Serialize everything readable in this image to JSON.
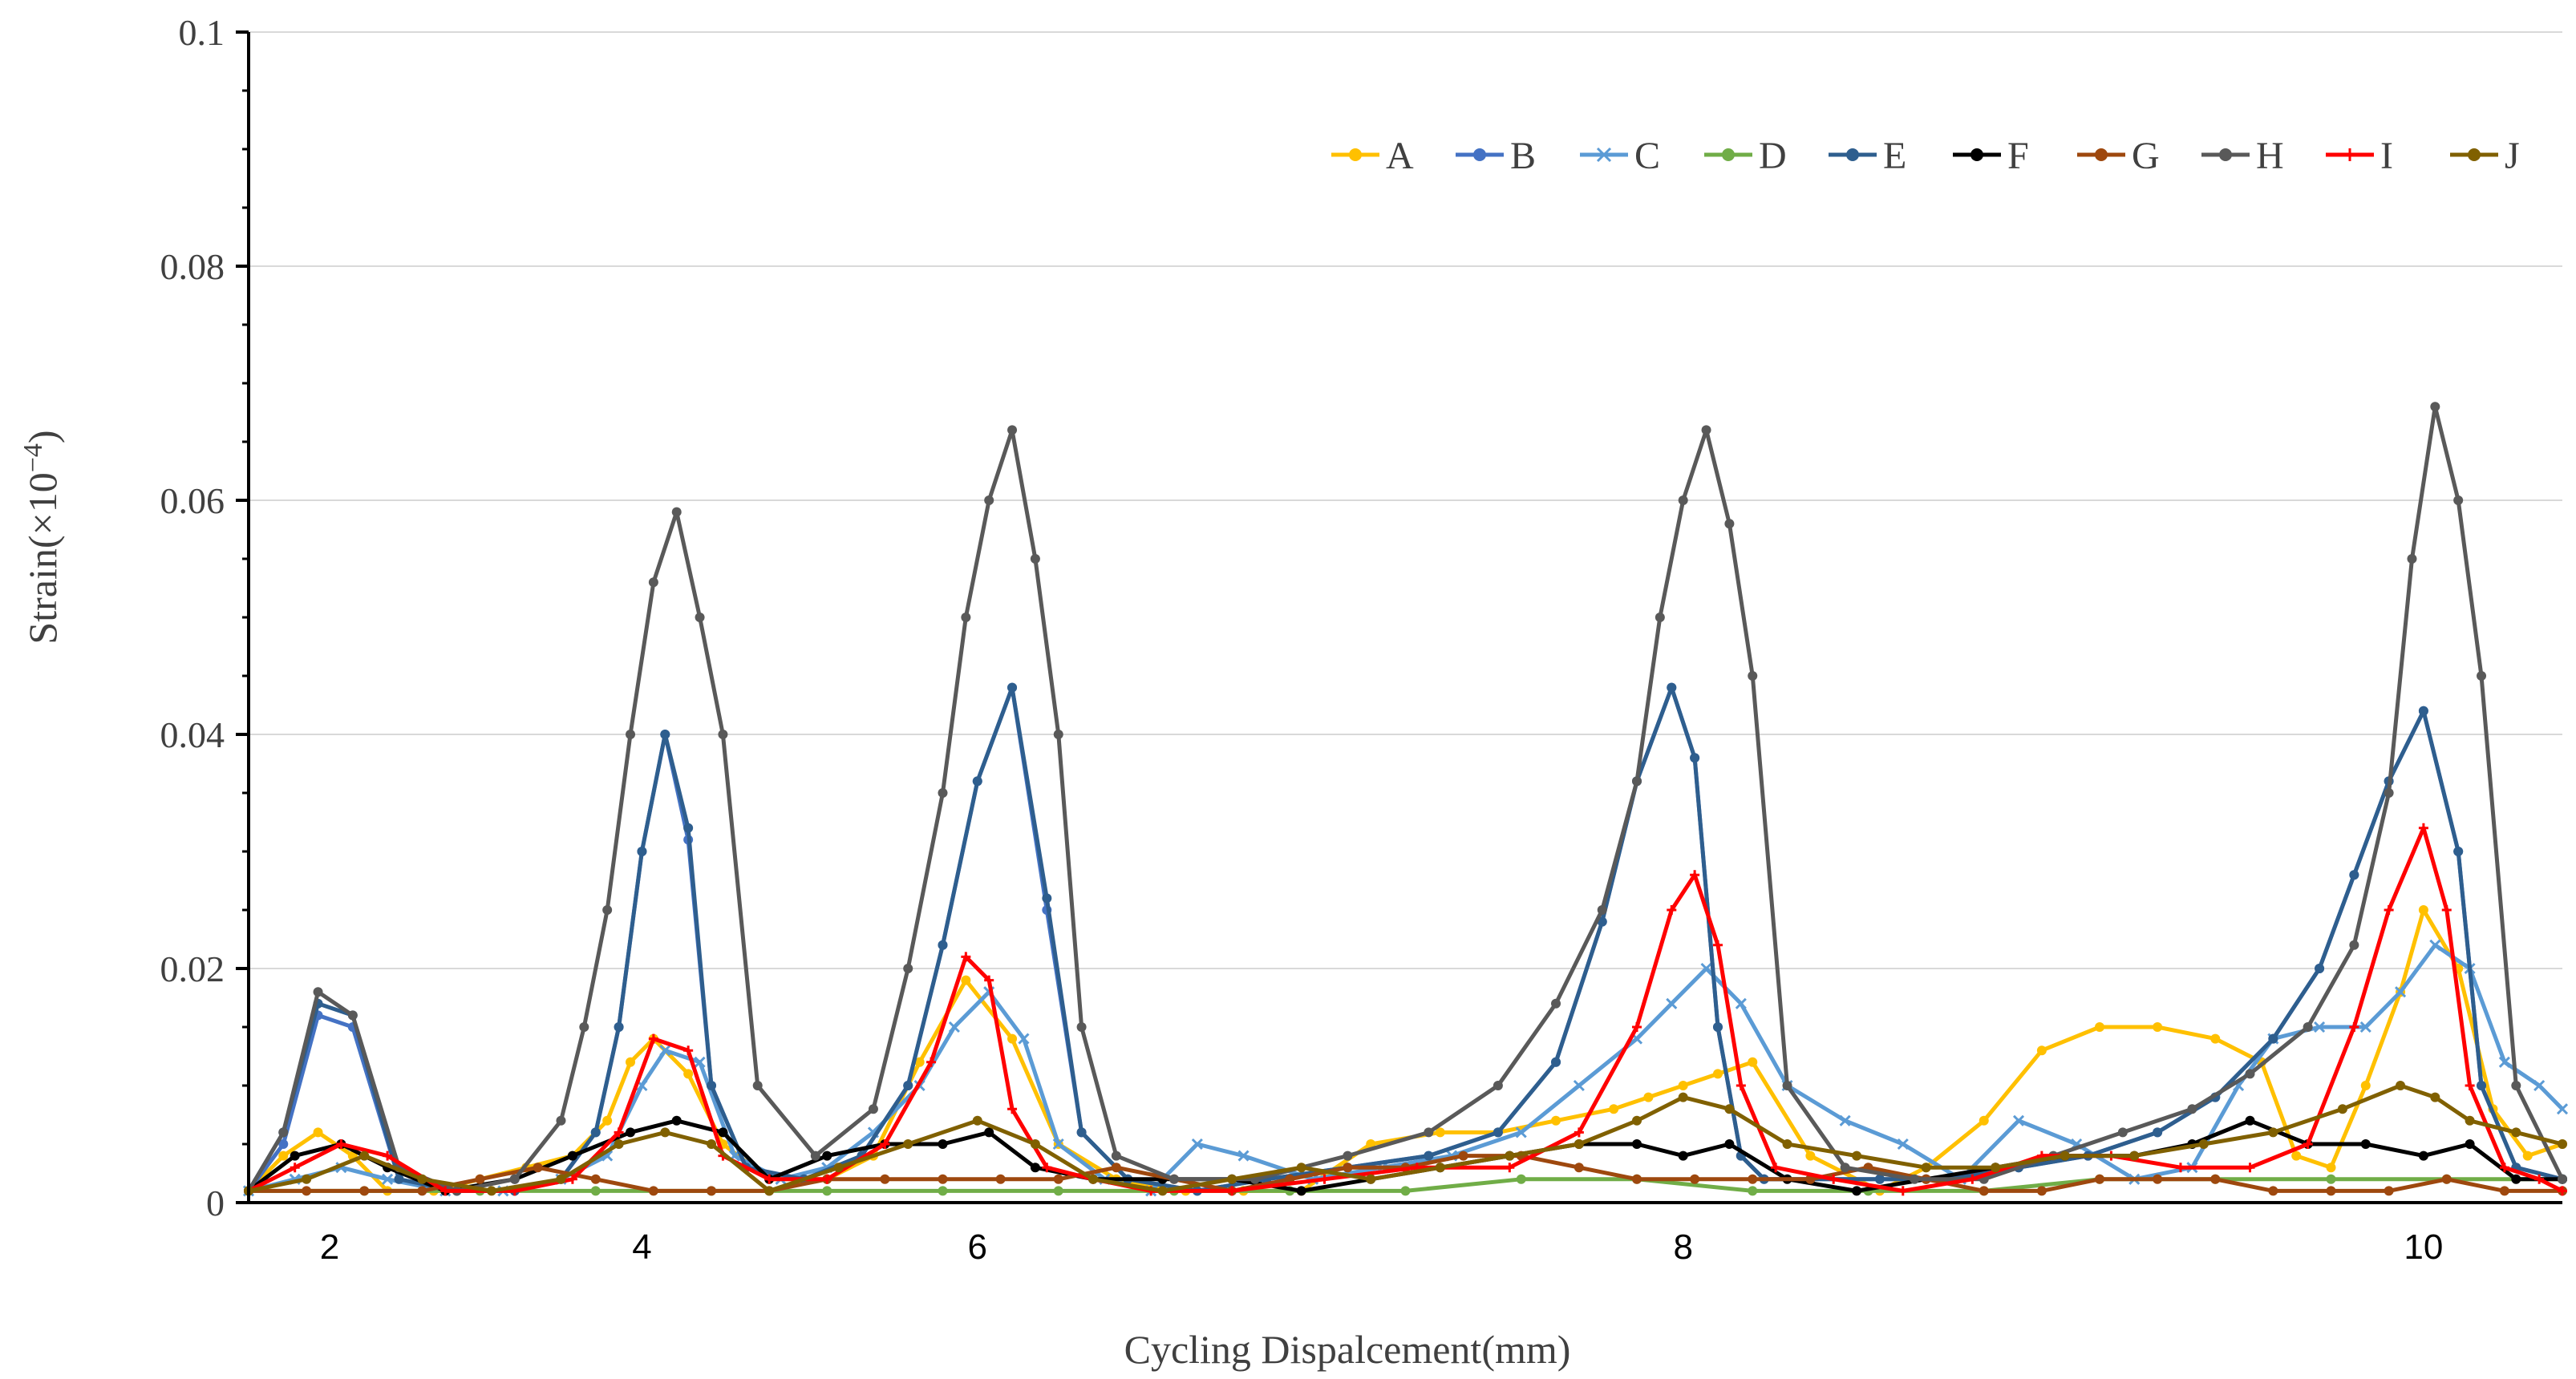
{
  "chart_data": {
    "type": "line",
    "title": "",
    "xlabel": "Cycling Dispalcement(mm)",
    "ylabel_prefix": "Strain(×10",
    "ylabel_exponent": "−4",
    "ylabel_suffix": ")",
    "ylim": [
      0,
      0.1
    ],
    "yticks": [
      0,
      0.02,
      0.04,
      0.06,
      0.08,
      0.1
    ],
    "ytick_labels": [
      "0",
      "0.02",
      "0.04",
      "0.06",
      "0.08",
      "0.1"
    ],
    "xticks": [
      {
        "label": "2",
        "at": 0.7
      },
      {
        "label": "4",
        "at": 3.4
      },
      {
        "label": "6",
        "at": 6.3
      },
      {
        "label": "8",
        "at": 12.4
      },
      {
        "label": "10",
        "at": 18.8
      }
    ],
    "x_domain": [
      0,
      20
    ],
    "grid": true,
    "legend_position": "top-right",
    "series": [
      {
        "name": "A",
        "color": "#FFC000",
        "marker": "circle",
        "x": [
          0,
          0.3,
          0.6,
          0.9,
          1.2,
          1.6,
          2.0,
          2.4,
          2.8,
          3.1,
          3.3,
          3.5,
          3.8,
          4.1,
          4.5,
          5.0,
          5.4,
          5.8,
          6.2,
          6.6,
          7.0,
          7.5,
          8.1,
          8.6,
          9.1,
          9.7,
          10.3,
          10.8,
          11.3,
          11.8,
          12.1,
          12.4,
          12.7,
          13.0,
          13.5,
          14.1,
          14.5,
          15.0,
          15.5,
          16.0,
          16.5,
          17.0,
          17.4,
          17.7,
          18.0,
          18.3,
          18.6,
          18.8,
          19.1,
          19.4,
          19.7,
          20.0
        ],
        "y": [
          0.001,
          0.004,
          0.006,
          0.004,
          0.001,
          0.001,
          0.002,
          0.003,
          0.004,
          0.007,
          0.012,
          0.014,
          0.011,
          0.005,
          0.002,
          0.002,
          0.004,
          0.012,
          0.019,
          0.014,
          0.005,
          0.002,
          0.001,
          0.001,
          0.001,
          0.005,
          0.006,
          0.006,
          0.007,
          0.008,
          0.009,
          0.01,
          0.011,
          0.012,
          0.004,
          0.001,
          0.003,
          0.007,
          0.013,
          0.015,
          0.015,
          0.014,
          0.012,
          0.004,
          0.003,
          0.01,
          0.018,
          0.025,
          0.02,
          0.008,
          0.004,
          0.005
        ]
      },
      {
        "name": "B",
        "color": "#4472C4",
        "marker": "circle",
        "x": [
          0,
          0.3,
          0.6,
          0.9,
          1.3,
          1.8,
          2.3,
          2.7,
          3.0,
          3.2,
          3.4,
          3.6,
          3.8,
          4.0,
          4.3,
          4.8,
          5.3,
          5.7,
          6.0,
          6.3,
          6.6,
          6.9,
          7.2,
          7.6,
          8.2,
          8.8,
          9.5,
          10.2,
          10.8,
          11.3,
          11.7,
          12.0,
          12.3,
          12.5,
          12.7,
          12.9,
          13.1,
          13.5,
          14.1,
          14.7,
          15.3,
          15.9,
          16.5,
          17.0,
          17.5,
          17.9,
          18.2,
          18.5,
          18.8,
          19.1,
          19.3,
          19.6,
          20.0
        ],
        "y": [
          0.001,
          0.005,
          0.016,
          0.015,
          0.002,
          0.001,
          0.001,
          0.002,
          0.006,
          0.015,
          0.03,
          0.04,
          0.031,
          0.01,
          0.003,
          0.002,
          0.004,
          0.01,
          0.022,
          0.036,
          0.044,
          0.025,
          0.006,
          0.002,
          0.001,
          0.002,
          0.003,
          0.004,
          0.006,
          0.012,
          0.024,
          0.036,
          0.044,
          0.038,
          0.015,
          0.004,
          0.002,
          0.002,
          0.002,
          0.002,
          0.003,
          0.004,
          0.006,
          0.009,
          0.014,
          0.02,
          0.028,
          0.036,
          0.042,
          0.03,
          0.01,
          0.003,
          0.002
        ]
      },
      {
        "name": "C",
        "color": "#5B9BD5",
        "marker": "cross",
        "x": [
          0,
          0.4,
          0.8,
          1.2,
          1.7,
          2.2,
          2.7,
          3.1,
          3.4,
          3.6,
          3.9,
          4.2,
          4.6,
          5.0,
          5.4,
          5.8,
          6.1,
          6.4,
          6.7,
          7.0,
          7.4,
          7.8,
          8.2,
          8.6,
          9.2,
          9.8,
          10.4,
          11.0,
          11.5,
          12.0,
          12.3,
          12.6,
          12.9,
          13.3,
          13.8,
          14.3,
          14.8,
          15.3,
          15.8,
          16.3,
          16.8,
          17.2,
          17.5,
          17.9,
          18.3,
          18.6,
          18.9,
          19.2,
          19.5,
          19.8,
          20.0
        ],
        "y": [
          0.001,
          0.002,
          0.003,
          0.002,
          0.001,
          0.001,
          0.002,
          0.004,
          0.01,
          0.013,
          0.012,
          0.004,
          0.002,
          0.003,
          0.006,
          0.01,
          0.015,
          0.018,
          0.014,
          0.005,
          0.002,
          0.001,
          0.005,
          0.004,
          0.002,
          0.003,
          0.004,
          0.006,
          0.01,
          0.014,
          0.017,
          0.02,
          0.017,
          0.01,
          0.007,
          0.005,
          0.002,
          0.007,
          0.005,
          0.002,
          0.003,
          0.01,
          0.014,
          0.015,
          0.015,
          0.018,
          0.022,
          0.02,
          0.012,
          0.01,
          0.008
        ]
      },
      {
        "name": "D",
        "color": "#70AD47",
        "marker": "circle",
        "x": [
          0,
          1.0,
          2.0,
          3.0,
          4.0,
          5.0,
          6.0,
          7.0,
          8.0,
          9.0,
          10.0,
          11.0,
          12.0,
          13.0,
          14.0,
          15.0,
          16.0,
          17.0,
          18.0,
          19.0,
          20.0
        ],
        "y": [
          0.001,
          0.001,
          0.001,
          0.001,
          0.001,
          0.001,
          0.001,
          0.001,
          0.001,
          0.001,
          0.001,
          0.002,
          0.002,
          0.001,
          0.001,
          0.001,
          0.002,
          0.002,
          0.002,
          0.002,
          0.002
        ]
      },
      {
        "name": "E",
        "color": "#2E5E8E",
        "marker": "circle",
        "x": [
          0,
          0.3,
          0.6,
          0.9,
          1.3,
          1.8,
          2.3,
          2.7,
          3.0,
          3.2,
          3.4,
          3.6,
          3.8,
          4.0,
          4.3,
          4.8,
          5.3,
          5.7,
          6.0,
          6.3,
          6.6,
          6.9,
          7.2,
          7.6,
          8.2,
          8.8,
          9.5,
          10.2,
          10.8,
          11.3,
          11.7,
          12.0,
          12.3,
          12.5,
          12.7,
          12.9,
          13.1,
          13.5,
          14.1,
          14.7,
          15.3,
          15.9,
          16.5,
          17.0,
          17.5,
          17.9,
          18.2,
          18.5,
          18.8,
          19.1,
          19.3,
          19.6,
          20.0
        ],
        "y": [
          0.001,
          0.006,
          0.017,
          0.016,
          0.002,
          0.001,
          0.001,
          0.002,
          0.006,
          0.015,
          0.03,
          0.04,
          0.032,
          0.01,
          0.003,
          0.002,
          0.004,
          0.01,
          0.022,
          0.036,
          0.044,
          0.026,
          0.006,
          0.002,
          0.001,
          0.002,
          0.003,
          0.004,
          0.006,
          0.012,
          0.024,
          0.036,
          0.044,
          0.038,
          0.015,
          0.004,
          0.002,
          0.002,
          0.002,
          0.002,
          0.003,
          0.004,
          0.006,
          0.009,
          0.014,
          0.02,
          0.028,
          0.036,
          0.042,
          0.03,
          0.01,
          0.003,
          0.002
        ]
      },
      {
        "name": "F",
        "color": "#000000",
        "marker": "circle",
        "x": [
          0,
          0.4,
          0.8,
          1.2,
          1.7,
          2.3,
          2.8,
          3.3,
          3.7,
          4.1,
          4.5,
          5.0,
          5.5,
          6.0,
          6.4,
          6.8,
          7.3,
          7.9,
          8.5,
          9.1,
          9.7,
          10.3,
          10.9,
          11.5,
          12.0,
          12.4,
          12.8,
          13.3,
          13.9,
          14.5,
          15.1,
          15.7,
          16.3,
          16.8,
          17.3,
          17.8,
          18.3,
          18.8,
          19.2,
          19.6,
          20.0
        ],
        "y": [
          0.001,
          0.004,
          0.005,
          0.003,
          0.001,
          0.002,
          0.004,
          0.006,
          0.007,
          0.006,
          0.002,
          0.004,
          0.005,
          0.005,
          0.006,
          0.003,
          0.002,
          0.002,
          0.002,
          0.001,
          0.002,
          0.003,
          0.004,
          0.005,
          0.005,
          0.004,
          0.005,
          0.002,
          0.001,
          0.002,
          0.003,
          0.004,
          0.004,
          0.005,
          0.007,
          0.005,
          0.005,
          0.004,
          0.005,
          0.002,
          0.002
        ]
      },
      {
        "name": "G",
        "color": "#9E480E",
        "marker": "circle",
        "x": [
          0,
          0.5,
          1.0,
          1.5,
          2.0,
          2.5,
          3.0,
          3.5,
          4.0,
          4.5,
          5.0,
          5.5,
          6.0,
          6.5,
          7.0,
          7.5,
          8.0,
          8.5,
          9.0,
          9.5,
          10.0,
          10.5,
          11.0,
          11.5,
          12.0,
          12.5,
          13.0,
          13.5,
          14.0,
          14.5,
          15.0,
          15.5,
          16.0,
          16.5,
          17.0,
          17.5,
          18.0,
          18.5,
          19.0,
          19.5,
          20.0
        ],
        "y": [
          0.001,
          0.001,
          0.001,
          0.001,
          0.002,
          0.003,
          0.002,
          0.001,
          0.001,
          0.001,
          0.002,
          0.002,
          0.002,
          0.002,
          0.002,
          0.003,
          0.002,
          0.001,
          0.002,
          0.003,
          0.003,
          0.004,
          0.004,
          0.003,
          0.002,
          0.002,
          0.002,
          0.002,
          0.003,
          0.002,
          0.001,
          0.001,
          0.002,
          0.002,
          0.002,
          0.001,
          0.001,
          0.001,
          0.002,
          0.001,
          0.001
        ]
      },
      {
        "name": "H",
        "color": "#595959",
        "marker": "circle",
        "x": [
          0,
          0.3,
          0.6,
          0.9,
          1.3,
          1.8,
          2.3,
          2.7,
          2.9,
          3.1,
          3.3,
          3.5,
          3.7,
          3.9,
          4.1,
          4.4,
          4.9,
          5.4,
          5.7,
          6.0,
          6.2,
          6.4,
          6.6,
          6.8,
          7.0,
          7.2,
          7.5,
          8.0,
          8.7,
          9.5,
          10.2,
          10.8,
          11.3,
          11.7,
          12.0,
          12.2,
          12.4,
          12.6,
          12.8,
          13.0,
          13.3,
          13.8,
          14.4,
          15.0,
          15.6,
          16.2,
          16.8,
          17.3,
          17.8,
          18.2,
          18.5,
          18.7,
          18.9,
          19.1,
          19.3,
          19.6,
          20.0
        ],
        "y": [
          0.001,
          0.006,
          0.018,
          0.016,
          0.003,
          0.001,
          0.002,
          0.007,
          0.015,
          0.025,
          0.04,
          0.053,
          0.059,
          0.05,
          0.04,
          0.01,
          0.004,
          0.008,
          0.02,
          0.035,
          0.05,
          0.06,
          0.066,
          0.055,
          0.04,
          0.015,
          0.004,
          0.002,
          0.002,
          0.004,
          0.006,
          0.01,
          0.017,
          0.025,
          0.036,
          0.05,
          0.06,
          0.066,
          0.058,
          0.045,
          0.01,
          0.003,
          0.002,
          0.002,
          0.004,
          0.006,
          0.008,
          0.011,
          0.015,
          0.022,
          0.035,
          0.055,
          0.068,
          0.06,
          0.045,
          0.01,
          0.002
        ]
      },
      {
        "name": "I",
        "color": "#FF0000",
        "marker": "plus",
        "x": [
          0,
          0.4,
          0.8,
          1.2,
          1.7,
          2.3,
          2.8,
          3.2,
          3.5,
          3.8,
          4.1,
          4.5,
          5.0,
          5.5,
          5.9,
          6.2,
          6.4,
          6.6,
          6.9,
          7.3,
          7.8,
          8.5,
          9.3,
          10.1,
          10.9,
          11.5,
          12.0,
          12.3,
          12.5,
          12.7,
          12.9,
          13.2,
          13.7,
          14.3,
          14.9,
          15.5,
          16.1,
          16.7,
          17.3,
          17.8,
          18.2,
          18.5,
          18.8,
          19.0,
          19.2,
          19.5,
          19.8,
          20.0
        ],
        "y": [
          0.001,
          0.003,
          0.005,
          0.004,
          0.001,
          0.001,
          0.002,
          0.006,
          0.014,
          0.013,
          0.004,
          0.002,
          0.002,
          0.005,
          0.012,
          0.021,
          0.019,
          0.008,
          0.003,
          0.002,
          0.001,
          0.001,
          0.002,
          0.003,
          0.003,
          0.006,
          0.015,
          0.025,
          0.028,
          0.022,
          0.01,
          0.003,
          0.002,
          0.001,
          0.002,
          0.004,
          0.004,
          0.003,
          0.003,
          0.005,
          0.015,
          0.025,
          0.032,
          0.025,
          0.01,
          0.003,
          0.002,
          0.001
        ]
      },
      {
        "name": "J",
        "color": "#806000",
        "marker": "circle",
        "x": [
          0,
          0.5,
          1.0,
          1.5,
          2.1,
          2.7,
          3.2,
          3.6,
          4.0,
          4.5,
          5.1,
          5.7,
          6.3,
          6.8,
          7.3,
          7.9,
          8.5,
          9.1,
          9.7,
          10.3,
          10.9,
          11.5,
          12.0,
          12.4,
          12.8,
          13.3,
          13.9,
          14.5,
          15.1,
          15.7,
          16.3,
          16.9,
          17.5,
          18.1,
          18.6,
          18.9,
          19.2,
          19.6,
          20.0
        ],
        "y": [
          0.001,
          0.002,
          0.004,
          0.002,
          0.001,
          0.002,
          0.005,
          0.006,
          0.005,
          0.001,
          0.003,
          0.005,
          0.007,
          0.005,
          0.002,
          0.001,
          0.002,
          0.003,
          0.002,
          0.003,
          0.004,
          0.005,
          0.007,
          0.009,
          0.008,
          0.005,
          0.004,
          0.003,
          0.003,
          0.004,
          0.004,
          0.005,
          0.006,
          0.008,
          0.01,
          0.009,
          0.007,
          0.006,
          0.005
        ]
      }
    ]
  }
}
